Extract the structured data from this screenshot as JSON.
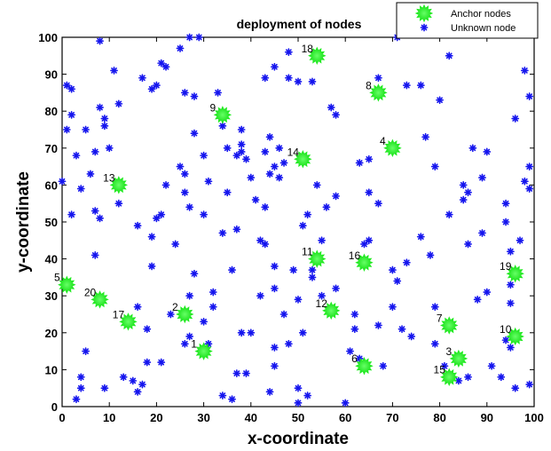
{
  "chart_data": {
    "type": "scatter",
    "title": "deployment of nodes",
    "xlabel": "x-coordinate",
    "ylabel": "y-coordinate",
    "xlim": [
      0,
      100
    ],
    "ylim": [
      0,
      100
    ],
    "xticks": [
      "0",
      "10",
      "20",
      "30",
      "40",
      "50",
      "60",
      "70",
      "80",
      "90",
      "100"
    ],
    "yticks": [
      "0",
      "10",
      "20",
      "30",
      "40",
      "50",
      "60",
      "70",
      "80",
      "90",
      "100"
    ],
    "grid": false,
    "legend_position": "top-right",
    "series": [
      {
        "name": "Anchor nodes",
        "color": "#22ee22",
        "marker": "star-burst",
        "points": [
          {
            "label": "1",
            "x": 30,
            "y": 15
          },
          {
            "label": "2",
            "x": 26,
            "y": 25
          },
          {
            "label": "3",
            "x": 84,
            "y": 13
          },
          {
            "label": "4",
            "x": 70,
            "y": 70
          },
          {
            "label": "5",
            "x": 1,
            "y": 33
          },
          {
            "label": "6",
            "x": 64,
            "y": 11
          },
          {
            "label": "7",
            "x": 82,
            "y": 22
          },
          {
            "label": "8",
            "x": 67,
            "y": 85
          },
          {
            "label": "9",
            "x": 34,
            "y": 79
          },
          {
            "label": "10",
            "x": 96,
            "y": 19
          },
          {
            "label": "11",
            "x": 54,
            "y": 40
          },
          {
            "label": "12",
            "x": 57,
            "y": 26
          },
          {
            "label": "13",
            "x": 12,
            "y": 60
          },
          {
            "label": "14",
            "x": 51,
            "y": 67
          },
          {
            "label": "15",
            "x": 82,
            "y": 8
          },
          {
            "label": "16",
            "x": 64,
            "y": 39
          },
          {
            "label": "17",
            "x": 14,
            "y": 23
          },
          {
            "label": "18",
            "x": 54,
            "y": 95
          },
          {
            "label": "19",
            "x": 96,
            "y": 36
          },
          {
            "label": "20",
            "x": 8,
            "y": 29
          }
        ]
      },
      {
        "name": "Unknown node",
        "color": "#1515ee",
        "marker": "asterisk",
        "points": [
          [
            1,
            87
          ],
          [
            2,
            86
          ],
          [
            2,
            79
          ],
          [
            1,
            75
          ],
          [
            5,
            75
          ],
          [
            0,
            61
          ],
          [
            4,
            59
          ],
          [
            2,
            52
          ],
          [
            7,
            53
          ],
          [
            7,
            41
          ],
          [
            5,
            15
          ],
          [
            4,
            8
          ],
          [
            4,
            5
          ],
          [
            9,
            5
          ],
          [
            3,
            2
          ],
          [
            8,
            81
          ],
          [
            9,
            76
          ],
          [
            11,
            91
          ],
          [
            12,
            82
          ],
          [
            8,
            99
          ],
          [
            12,
            55
          ],
          [
            7,
            69
          ],
          [
            8,
            51
          ],
          [
            17,
            89
          ],
          [
            19,
            86
          ],
          [
            20,
            87
          ],
          [
            22,
            92
          ],
          [
            21,
            93
          ],
          [
            25,
            97
          ],
          [
            27,
            100
          ],
          [
            29,
            100
          ],
          [
            26,
            85
          ],
          [
            28,
            84
          ],
          [
            25,
            65
          ],
          [
            26,
            63
          ],
          [
            28,
            74
          ],
          [
            26,
            58
          ],
          [
            30,
            68
          ],
          [
            30,
            52
          ],
          [
            27,
            54
          ],
          [
            22,
            60
          ],
          [
            21,
            52
          ],
          [
            20,
            51
          ],
          [
            19,
            46
          ],
          [
            19,
            38
          ],
          [
            16,
            49
          ],
          [
            18,
            21
          ],
          [
            21,
            12
          ],
          [
            17,
            6
          ],
          [
            18,
            12
          ],
          [
            16,
            4
          ],
          [
            15,
            7
          ],
          [
            13,
            8
          ],
          [
            16,
            27
          ],
          [
            27,
            30
          ],
          [
            23,
            25
          ],
          [
            26,
            17
          ],
          [
            27,
            19
          ],
          [
            33,
            85
          ],
          [
            34,
            76
          ],
          [
            35,
            70
          ],
          [
            37,
            68
          ],
          [
            38,
            69
          ],
          [
            38,
            75
          ],
          [
            38,
            71
          ],
          [
            39,
            67
          ],
          [
            40,
            62
          ],
          [
            41,
            56
          ],
          [
            37,
            48
          ],
          [
            35,
            58
          ],
          [
            34,
            47
          ],
          [
            36,
            37
          ],
          [
            42,
            45
          ],
          [
            43,
            44
          ],
          [
            43,
            54
          ],
          [
            43,
            89
          ],
          [
            45,
            92
          ],
          [
            48,
            89
          ],
          [
            50,
            88
          ],
          [
            53,
            88
          ],
          [
            48,
            96
          ],
          [
            45,
            65
          ],
          [
            46,
            62
          ],
          [
            44,
            63
          ],
          [
            47,
            66
          ],
          [
            46,
            70
          ],
          [
            43,
            69
          ],
          [
            44,
            73
          ],
          [
            52,
            52
          ],
          [
            54,
            60
          ],
          [
            51,
            49
          ],
          [
            58,
            57
          ],
          [
            54,
            40
          ],
          [
            45,
            38
          ],
          [
            49,
            37
          ],
          [
            40,
            20
          ],
          [
            38,
            20
          ],
          [
            37,
            9
          ],
          [
            39,
            9
          ],
          [
            42,
            30
          ],
          [
            45,
            16
          ],
          [
            44,
            4
          ],
          [
            45,
            11
          ],
          [
            48,
            17
          ],
          [
            50,
            5
          ],
          [
            52,
            3
          ],
          [
            50,
            1
          ],
          [
            51,
            20
          ],
          [
            53,
            37
          ],
          [
            55,
            30
          ],
          [
            58,
            32
          ],
          [
            62,
            21
          ],
          [
            61,
            15
          ],
          [
            63,
            13
          ],
          [
            67,
            55
          ],
          [
            65,
            58
          ],
          [
            65,
            45
          ],
          [
            64,
            44
          ],
          [
            63,
            66
          ],
          [
            65,
            67
          ],
          [
            67,
            89
          ],
          [
            71,
            100
          ],
          [
            73,
            87
          ],
          [
            76,
            87
          ],
          [
            77,
            73
          ],
          [
            80,
            83
          ],
          [
            79,
            65
          ],
          [
            82,
            52
          ],
          [
            82,
            95
          ],
          [
            78,
            41
          ],
          [
            76,
            46
          ],
          [
            73,
            39
          ],
          [
            70,
            37
          ],
          [
            71,
            34
          ],
          [
            70,
            27
          ],
          [
            67,
            22
          ],
          [
            68,
            11
          ],
          [
            72,
            21
          ],
          [
            74,
            19
          ],
          [
            79,
            27
          ],
          [
            79,
            17
          ],
          [
            81,
            11
          ],
          [
            84,
            7
          ],
          [
            86,
            44
          ],
          [
            85,
            56
          ],
          [
            86,
            58
          ],
          [
            85,
            60
          ],
          [
            87,
            70
          ],
          [
            89,
            62
          ],
          [
            89,
            47
          ],
          [
            90,
            69
          ],
          [
            90,
            31
          ],
          [
            94,
            50
          ],
          [
            94,
            55
          ],
          [
            95,
            33
          ],
          [
            95,
            28
          ],
          [
            94,
            18
          ],
          [
            95,
            16
          ],
          [
            96,
            5
          ],
          [
            99,
            6
          ],
          [
            96,
            78
          ],
          [
            98,
            61
          ],
          [
            99,
            59
          ],
          [
            99,
            65
          ],
          [
            98,
            91
          ],
          [
            99,
            84
          ],
          [
            97,
            45
          ],
          [
            95,
            42
          ],
          [
            91,
            11
          ],
          [
            93,
            8
          ],
          [
            86,
            8
          ],
          [
            88,
            29
          ],
          [
            60,
            1
          ],
          [
            62,
            25
          ],
          [
            58,
            79
          ],
          [
            57,
            81
          ],
          [
            56,
            54
          ],
          [
            55,
            45
          ],
          [
            53,
            35
          ],
          [
            50,
            29
          ],
          [
            47,
            25
          ],
          [
            45,
            32
          ],
          [
            32,
            31
          ],
          [
            32,
            27
          ],
          [
            30,
            23
          ],
          [
            31,
            17
          ],
          [
            34,
            3
          ],
          [
            36,
            2
          ],
          [
            31,
            61
          ],
          [
            28,
            36
          ],
          [
            24,
            44
          ],
          [
            10,
            70
          ],
          [
            9,
            78
          ],
          [
            6,
            63
          ],
          [
            3,
            68
          ]
        ]
      }
    ]
  }
}
